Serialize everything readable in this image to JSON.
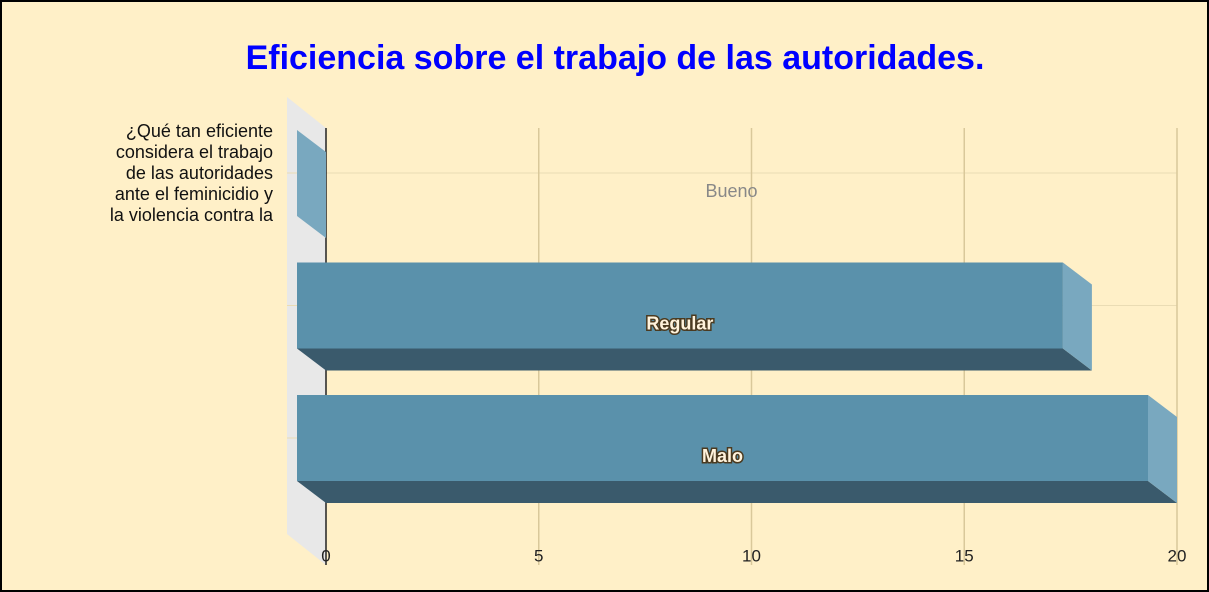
{
  "chart_data": {
    "type": "bar3d_horizontal",
    "title": "Eficiencia sobre el trabajo de las autoridades.",
    "ylabel": [
      "¿Qué tan eficiente",
      "considera el trabajo",
      "de las autoridades",
      "ante el feminicidio y",
      "la violencia contra la"
    ],
    "categories": [
      "Bueno",
      "Regular",
      "Malo"
    ],
    "values": [
      0,
      18,
      20
    ],
    "color": "#5a91ab",
    "xlim": [
      0,
      20
    ],
    "xticks": [
      0,
      5,
      10,
      15,
      20
    ],
    "grid": true
  }
}
